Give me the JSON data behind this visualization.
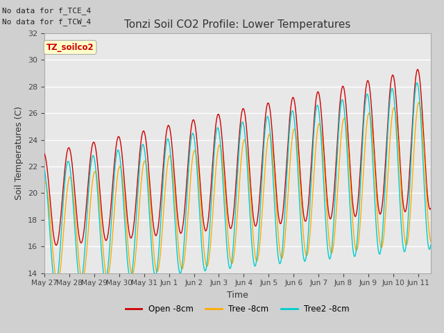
{
  "title": "Tonzi Soil CO2 Profile: Lower Temperatures",
  "xlabel": "Time",
  "ylabel": "Soil Temperatures (C)",
  "ylim": [
    14,
    32
  ],
  "no_data_text": [
    "No data for f_TCE_4",
    "No data for f_TCW_4"
  ],
  "soilco2_label": "TZ_soilco2",
  "legend_labels": [
    "Open -8cm",
    "Tree -8cm",
    "Tree2 -8cm"
  ],
  "line_colors": [
    "#cc0000",
    "#ffaa00",
    "#00cccc"
  ],
  "xtick_labels": [
    "May 27",
    "May 28",
    "May 29",
    "May 30",
    "May 31",
    "Jun 1",
    "Jun 2",
    "Jun 3",
    "Jun 4",
    "Jun 5",
    "Jun 6",
    "Jun 7",
    "Jun 8",
    "Jun 9",
    "Jun 10",
    "Jun 11"
  ],
  "xtick_positions": [
    0,
    1,
    2,
    3,
    4,
    5,
    6,
    7,
    8,
    9,
    10,
    11,
    12,
    13,
    14,
    15
  ],
  "ytick_positions": [
    14,
    16,
    18,
    20,
    22,
    24,
    26,
    28,
    30,
    32
  ],
  "fig_bg": "#d0d0d0",
  "plot_bg": "#e8e8e8",
  "grid_color": "#ffffff",
  "title_fontsize": 11,
  "label_fontsize": 9,
  "tick_fontsize": 8,
  "nodata_fontsize": 8
}
